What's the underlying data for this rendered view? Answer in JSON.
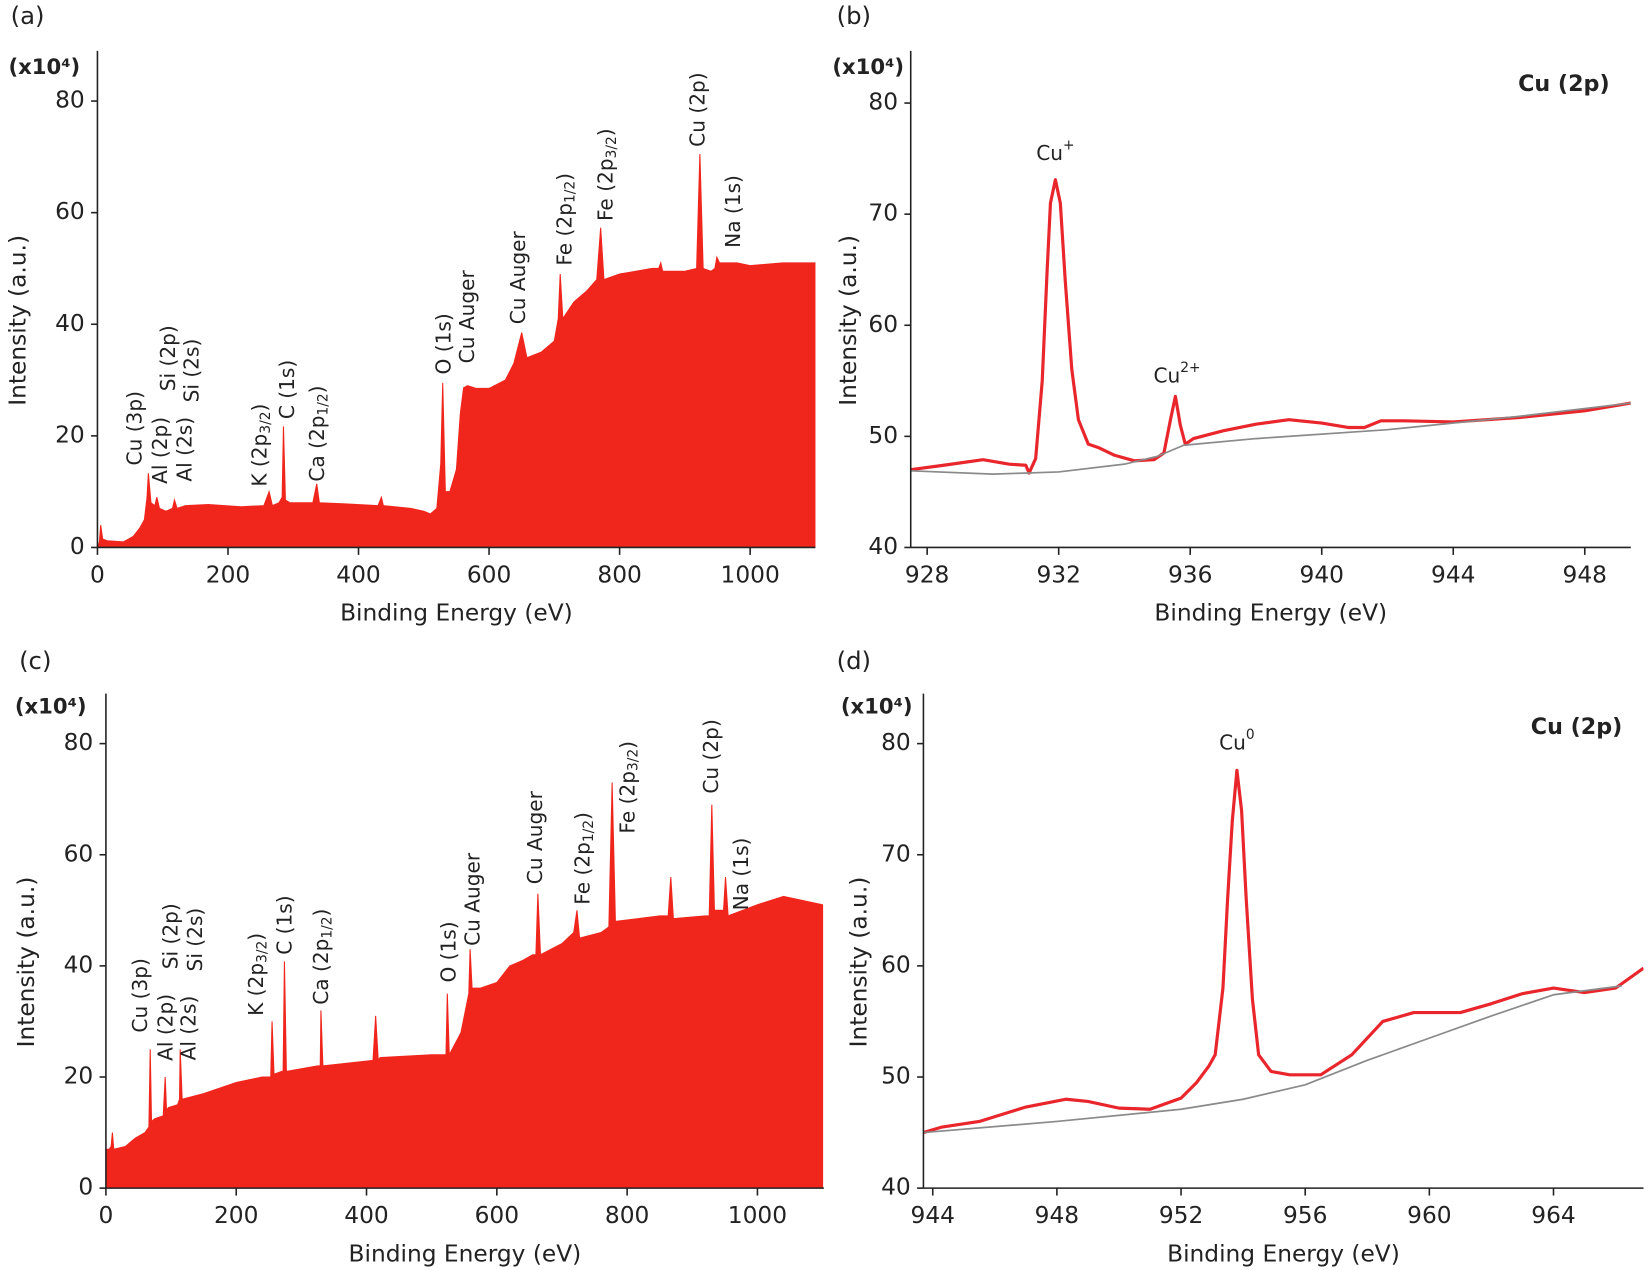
{
  "chart_data": [
    {
      "type": "area",
      "panel_label": "(a)",
      "y_unit": "(x10⁴)",
      "xlabel": "Binding Energy (eV)",
      "ylabel": "Intensity (a.u.)",
      "xlim": [
        0,
        1100
      ],
      "xticks": [
        0,
        200,
        400,
        600,
        800,
        1000
      ],
      "ylim": [
        0,
        89
      ],
      "yticks": [
        0,
        20,
        40,
        60,
        80
      ],
      "series": [
        {
          "color": "#f0261d",
          "x": [
            0,
            3,
            5,
            8,
            15,
            40,
            55,
            65,
            72,
            76,
            78,
            82,
            88,
            91,
            95,
            105,
            115,
            118,
            122,
            135,
            170,
            220,
            255,
            263,
            268,
            278,
            283,
            285,
            288,
            295,
            330,
            336,
            340,
            380,
            430,
            435,
            438,
            480,
            500,
            510,
            520,
            526,
            529,
            533,
            540,
            550,
            556,
            561,
            567,
            580,
            600,
            625,
            638,
            650,
            658,
            680,
            700,
            706,
            709,
            713,
            730,
            750,
            765,
            771,
            776,
            800,
            850,
            860,
            863,
            866,
            900,
            918,
            923,
            928,
            940,
            946,
            949,
            953,
            980,
            1000,
            1050,
            1100
          ],
          "values": [
            0,
            1,
            4,
            1.5,
            1.2,
            1,
            2,
            3.5,
            5,
            9,
            13.3,
            8,
            7.5,
            9,
            7,
            6.5,
            7,
            8.5,
            7,
            7.5,
            7.7,
            7.3,
            7.5,
            10,
            7.5,
            8,
            9,
            21.7,
            8.5,
            8,
            8,
            11.4,
            8,
            7.8,
            7.5,
            9,
            7.5,
            7,
            6.5,
            6,
            7,
            15,
            29.5,
            10,
            10,
            14,
            24,
            28.6,
            29,
            28.5,
            28.5,
            30,
            33,
            38.5,
            34,
            35,
            37,
            41,
            49,
            41,
            44,
            46,
            48,
            57.3,
            48,
            49,
            50,
            50,
            51,
            49.5,
            49.5,
            50,
            70.5,
            50,
            49.5,
            50,
            52,
            51,
            51,
            50.5,
            51,
            51
          ]
        }
      ],
      "annotations": [
        {
          "text": "Cu (3p)",
          "x": 58,
          "y": 14.7
        },
        {
          "text": "Al (2p)",
          "x": 97,
          "y": 11.4
        },
        {
          "text": "Si (2p)",
          "x": 110,
          "y": 28
        },
        {
          "text": "Al (2s)",
          "x": 135,
          "y": 11.8
        },
        {
          "text": "Si (2s)",
          "x": 146,
          "y": 26
        },
        {
          "text": "K (2p",
          "sub": "3/2",
          "end": ")",
          "x": 250,
          "y": 10.9
        },
        {
          "text": "C (1s)",
          "x": 292,
          "y": 23
        },
        {
          "text": "Ca (2p",
          "sub": "1/2",
          "end": ")",
          "x": 338,
          "y": 11.8
        },
        {
          "text": "O (1s)",
          "x": 532,
          "y": 31
        },
        {
          "text": "Cu Auger",
          "x": 568,
          "y": 33
        },
        {
          "text": "Cu Auger",
          "x": 646,
          "y": 40
        },
        {
          "text": "Fe (2p",
          "sub": "1/2",
          "end": ")",
          "x": 717,
          "y": 50.5
        },
        {
          "text": "Fe (2p",
          "sub": "3/2",
          "end": ")",
          "x": 780,
          "y": 58.5
        },
        {
          "text": "Cu (2p)",
          "x": 921,
          "y": 71.8
        },
        {
          "text": "Na (1s)",
          "x": 975,
          "y": 53.7
        }
      ]
    },
    {
      "type": "line",
      "panel_label": "(b)",
      "y_unit": "(x10⁴)",
      "title": "Cu (2p)",
      "xlabel": "Binding Energy (eV)",
      "ylabel": "Intensity (a.u.)",
      "xlim": [
        927.5,
        949.4
      ],
      "xticks": [
        928,
        932,
        936,
        940,
        944,
        948
      ],
      "ylim": [
        40,
        84.7
      ],
      "yticks": [
        40,
        50,
        60,
        70,
        80
      ],
      "series": [
        {
          "color": "#e8262b",
          "x": [
            927.5,
            928.5,
            929.7,
            930.5,
            931.0,
            931.1,
            931.3,
            931.5,
            931.65,
            931.75,
            931.9,
            932.05,
            932.2,
            932.4,
            932.6,
            932.9,
            933.2,
            933.7,
            934.3,
            934.9,
            935.2,
            935.4,
            935.55,
            935.7,
            935.85,
            936.1,
            937,
            938,
            939,
            940,
            940.8,
            941.3,
            941.8,
            942.5,
            944,
            946,
            948,
            949.4
          ],
          "values": [
            47.0,
            47.4,
            47.9,
            47.5,
            47.4,
            46.7,
            48,
            55,
            65,
            71,
            73.1,
            71,
            64,
            56,
            51.5,
            49.3,
            49,
            48.3,
            47.8,
            47.9,
            48.5,
            51.5,
            53.6,
            51,
            49.3,
            49.8,
            50.5,
            51.1,
            51.5,
            51.2,
            50.8,
            50.8,
            51.4,
            51.4,
            51.3,
            51.7,
            52.3,
            53
          ]
        },
        {
          "color": "#8a8a8a",
          "x": [
            927.5,
            930,
            932,
            934,
            935,
            935.8,
            938,
            942,
            946,
            949.4
          ],
          "values": [
            46.9,
            46.6,
            46.8,
            47.5,
            48.2,
            49.2,
            49.8,
            50.6,
            51.8,
            53
          ]
        }
      ],
      "annotations": [
        {
          "text": "Cu",
          "sup": "+",
          "x": 931.9,
          "y": 75.4
        },
        {
          "text": "Cu",
          "sup": "2+",
          "x": 935.6,
          "y": 55.4
        }
      ]
    },
    {
      "type": "area",
      "panel_label": "(c)",
      "y_unit": "(x10⁴)",
      "xlabel": "Binding Energy (eV)",
      "ylabel": "Intensity (a.u.)",
      "xlim": [
        0,
        1102
      ],
      "xticks": [
        0,
        200,
        400,
        600,
        800,
        1000
      ],
      "ylim": [
        0,
        89
      ],
      "yticks": [
        0,
        20,
        40,
        60,
        80
      ],
      "series": [
        {
          "color": "#f0261d",
          "x": [
            0,
            5,
            8,
            10,
            12,
            30,
            45,
            60,
            66,
            68,
            70,
            75,
            88,
            91,
            93,
            96,
            110,
            113,
            114,
            117,
            150,
            200,
            240,
            253,
            255,
            258,
            270,
            272,
            274,
            277,
            325,
            329,
            330,
            333,
            410,
            414,
            418,
            421,
            500,
            519,
            522,
            524,
            527,
            545,
            557,
            559,
            562,
            575,
            600,
            620,
            640,
            655,
            660,
            663,
            667,
            700,
            718,
            723,
            727,
            760,
            772,
            777,
            782,
            850,
            863,
            867,
            871,
            920,
            926,
            930,
            934,
            945,
            948,
            951,
            955,
            1000,
            1040,
            1100
          ],
          "values": [
            7,
            7,
            7.5,
            10,
            7,
            7.5,
            9,
            10,
            11,
            25,
            12,
            12.5,
            13,
            20,
            14,
            14.5,
            15,
            16,
            25,
            16,
            17,
            19,
            20,
            20,
            30,
            20.5,
            21,
            21,
            40.8,
            21,
            22,
            22,
            32,
            22,
            23,
            31,
            23,
            23.5,
            24,
            24,
            24,
            35,
            24,
            28,
            35,
            43,
            36,
            36,
            37,
            40,
            41,
            42,
            42,
            53,
            42,
            44,
            46,
            50,
            45,
            46,
            47,
            73,
            48,
            49,
            49,
            56,
            48.5,
            49,
            49,
            69,
            50,
            50,
            50,
            56,
            49,
            51,
            52.5,
            51
          ]
        }
      ],
      "annotations": [
        {
          "text": "Cu (3p)",
          "x": 54,
          "y": 28
        },
        {
          "text": "Al (2p)",
          "x": 93,
          "y": 22.9
        },
        {
          "text": "Si (2p)",
          "x": 101,
          "y": 39.4
        },
        {
          "text": "Al (2s)",
          "x": 128,
          "y": 23
        },
        {
          "text": "Si (2s)",
          "x": 138,
          "y": 39
        },
        {
          "text": "K (2p",
          "sub": "3/2",
          "end": ")",
          "x": 232,
          "y": 31
        },
        {
          "text": "C (1s)",
          "x": 276,
          "y": 42
        },
        {
          "text": "Ca (2p",
          "sub": "1/2",
          "end": ")",
          "x": 332,
          "y": 33
        },
        {
          "text": "O (1s)",
          "x": 527,
          "y": 37
        },
        {
          "text": "Cu Auger",
          "x": 564,
          "y": 43.6
        },
        {
          "text": "Cu Auger",
          "x": 660,
          "y": 54.7
        },
        {
          "text": "Fe (2p",
          "sub": "1/2",
          "end": ")",
          "x": 733,
          "y": 51
        },
        {
          "text": "Fe (2p",
          "sub": "3/2",
          "end": ")",
          "x": 802,
          "y": 63.8
        },
        {
          "text": "Cu (2p)",
          "x": 930,
          "y": 71
        },
        {
          "text": "Na (1s)",
          "x": 976,
          "y": 50
        }
      ]
    },
    {
      "type": "line",
      "panel_label": "(d)",
      "y_unit": "(x10⁴)",
      "title": "Cu (2p)",
      "xlabel": "Binding Energy (eV)",
      "ylabel": "Intensity (a.u.)",
      "xlim": [
        943.7,
        966.9
      ],
      "xticks": [
        944,
        948,
        952,
        956,
        960,
        964
      ],
      "ylim": [
        40,
        84.5
      ],
      "yticks": [
        40,
        50,
        60,
        70,
        80
      ],
      "series": [
        {
          "color": "#e8262b",
          "x": [
            943.7,
            944.3,
            945.5,
            947,
            948.3,
            949,
            950,
            951,
            952,
            952.5,
            952.9,
            953.1,
            953.35,
            953.5,
            953.65,
            953.8,
            953.95,
            954.1,
            954.3,
            954.5,
            954.9,
            955.5,
            956.5,
            957.5,
            958.5,
            959.5,
            961,
            962,
            963,
            964,
            965,
            966,
            966.9
          ],
          "values": [
            45.0,
            45.5,
            46.0,
            47.3,
            48.0,
            47.8,
            47.2,
            47.1,
            48.1,
            49.5,
            51,
            52,
            58,
            66,
            73,
            77.6,
            74,
            66,
            57,
            52,
            50.5,
            50.2,
            50.2,
            52,
            55,
            55.8,
            55.8,
            56.6,
            57.5,
            58.0,
            57.6,
            58.0,
            59.8
          ]
        },
        {
          "color": "#8a8a8a",
          "x": [
            943.7,
            948,
            952,
            954,
            956,
            958,
            960,
            962,
            964,
            966.2
          ],
          "values": [
            45.0,
            46.0,
            47.1,
            48.0,
            49.3,
            51.5,
            53.5,
            55.5,
            57.4,
            58.2
          ]
        }
      ],
      "annotations": [
        {
          "text": "Cu",
          "sup": "0",
          "x": 953.8,
          "y": 80.0
        }
      ]
    }
  ]
}
